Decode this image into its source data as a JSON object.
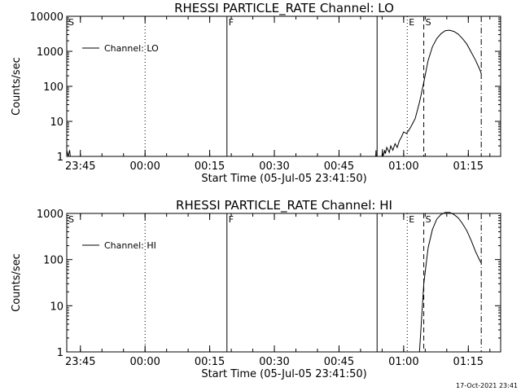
{
  "footer": {
    "timestamp": "17-Oct-2021 23:41"
  },
  "chart_data": [
    {
      "type": "line",
      "title": "RHESSI PARTICLE_RATE Channel: LO",
      "xlabel": "Start Time (05-Jul-05 23:41:50)",
      "ylabel": "Counts/sec",
      "yscale": "log",
      "xlim": [
        "23:41:50",
        "01:22:30"
      ],
      "ylim": [
        1,
        10000
      ],
      "x_ticks": [
        "23:45",
        "00:00",
        "00:15",
        "00:30",
        "00:45",
        "01:00",
        "01:15"
      ],
      "y_ticks": [
        "1",
        "10",
        "100",
        "1000",
        "10000"
      ],
      "legend": {
        "label": "Channel: LO",
        "placement": "top-left"
      },
      "markers": [
        {
          "label": "S",
          "time": "23:41:50",
          "style": "solid"
        },
        {
          "label": "",
          "time": "00:00:00",
          "style": "dotted"
        },
        {
          "label": "F",
          "time": "00:19:00",
          "style": "solid"
        },
        {
          "label": "",
          "time": "00:53:50",
          "style": "solid"
        },
        {
          "label": "E",
          "time": "01:00:50",
          "style": "dotted"
        },
        {
          "label": "S",
          "time": "01:04:40",
          "style": "dashed"
        },
        {
          "label": "",
          "time": "01:18:00",
          "style": "dashdot"
        }
      ],
      "series": [
        {
          "x": [
            "23:41:50",
            "23:42:10",
            "23:42:30",
            "23:42:40",
            "00:53:30",
            "00:53:35",
            "00:53:40",
            "00:55:00",
            "00:55:05",
            "00:55:10",
            "00:55:30",
            "00:55:35",
            "00:55:45",
            "00:56:05",
            "00:56:40",
            "00:57:00",
            "00:57:30",
            "00:58:00",
            "00:58:30",
            "00:59:00",
            "00:59:30",
            "01:00:00",
            "01:00:40",
            "01:01:10",
            "01:01:40",
            "01:02:40",
            "01:03:40",
            "01:04:40",
            "01:05:40",
            "01:06:40",
            "01:07:40",
            "01:08:40",
            "01:09:40",
            "01:10:40",
            "01:11:40",
            "01:12:40",
            "01:13:40",
            "01:14:40",
            "01:15:40",
            "01:16:40",
            "01:17:40",
            "01:18:00"
          ],
          "y": [
            1.5,
            1,
            1.5,
            1,
            1,
            1.5,
            1,
            1,
            1.6,
            1,
            1.3,
            1.5,
            1.2,
            1.8,
            1.3,
            2,
            1.5,
            2.3,
            1.8,
            2.8,
            3.6,
            5,
            4.5,
            5.5,
            7,
            12,
            35,
            130,
            550,
            1350,
            2300,
            3200,
            3900,
            4000,
            3700,
            3100,
            2300,
            1600,
            950,
            560,
            300,
            230
          ]
        }
      ]
    },
    {
      "type": "line",
      "title": "RHESSI PARTICLE_RATE Channel: HI",
      "xlabel": "Start Time (05-Jul-05 23:41:50)",
      "ylabel": "Counts/sec",
      "yscale": "log",
      "xlim": [
        "23:41:50",
        "01:22:30"
      ],
      "ylim": [
        1,
        1000
      ],
      "x_ticks": [
        "23:45",
        "00:00",
        "00:15",
        "00:30",
        "00:45",
        "01:00",
        "01:15"
      ],
      "y_ticks": [
        "1",
        "10",
        "100",
        "1000"
      ],
      "legend": {
        "label": "Channel: HI",
        "placement": "top-left"
      },
      "markers": [
        {
          "label": "S",
          "time": "23:41:50",
          "style": "solid"
        },
        {
          "label": "",
          "time": "00:00:00",
          "style": "dotted"
        },
        {
          "label": "F",
          "time": "00:19:00",
          "style": "solid"
        },
        {
          "label": "",
          "time": "00:53:50",
          "style": "solid"
        },
        {
          "label": "E",
          "time": "01:00:50",
          "style": "dotted"
        },
        {
          "label": "S",
          "time": "01:04:40",
          "style": "dashed"
        },
        {
          "label": "",
          "time": "01:18:00",
          "style": "dashdot"
        }
      ],
      "series": [
        {
          "x": [
            "01:03:40",
            "01:04:00",
            "01:04:40",
            "01:05:40",
            "01:06:40",
            "01:07:40",
            "01:08:40",
            "01:09:40",
            "01:10:40",
            "01:11:40",
            "01:12:40",
            "01:13:40",
            "01:14:40",
            "01:15:40",
            "01:16:40",
            "01:17:40",
            "01:18:00"
          ],
          "y": [
            1,
            3,
            30,
            180,
            450,
            750,
            950,
            1050,
            1050,
            950,
            800,
            600,
            420,
            260,
            150,
            95,
            85
          ]
        }
      ]
    }
  ]
}
